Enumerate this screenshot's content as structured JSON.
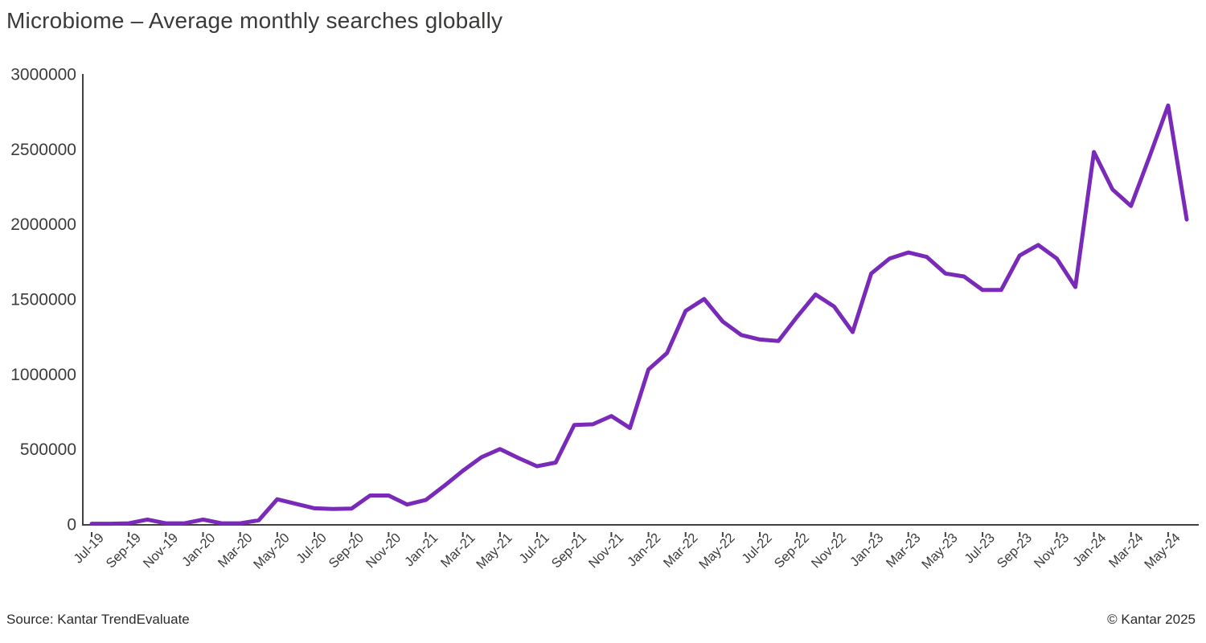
{
  "header": {
    "title": "Microbiome – Average monthly searches globally"
  },
  "footer": {
    "source": "Source: Kantar TrendEvaluate",
    "copyright": "© Kantar 2025"
  },
  "colors": {
    "line": "#7a2ab8",
    "axis": "#404040",
    "tick_text": "#3c3c3b",
    "background": "#ffffff"
  },
  "chart_data": {
    "type": "line",
    "title": "Microbiome – Average monthly searches globally",
    "xlabel": "",
    "ylabel": "",
    "ylim": [
      0,
      3000000
    ],
    "grid": false,
    "legend_position": "none",
    "series_name": "Average monthly searches",
    "x": [
      "Jul-19",
      "Aug-19",
      "Sep-19",
      "Oct-19",
      "Nov-19",
      "Dec-19",
      "Jan-20",
      "Feb-20",
      "Mar-20",
      "Apr-20",
      "May-20",
      "Jun-20",
      "Jul-20",
      "Aug-20",
      "Sep-20",
      "Oct-20",
      "Nov-20",
      "Dec-20",
      "Jan-21",
      "Feb-21",
      "Mar-21",
      "Apr-21",
      "May-21",
      "Jun-21",
      "Jul-21",
      "Aug-21",
      "Sep-21",
      "Oct-21",
      "Nov-21",
      "Dec-21",
      "Jan-22",
      "Feb-22",
      "Mar-22",
      "Apr-22",
      "May-22",
      "Jun-22",
      "Jul-22",
      "Aug-22",
      "Sep-22",
      "Oct-22",
      "Nov-22",
      "Dec-22",
      "Jan-23",
      "Feb-23",
      "Mar-23",
      "Apr-23",
      "May-23",
      "Jun-23",
      "Jul-23",
      "Aug-23",
      "Sep-23",
      "Oct-23",
      "Nov-23",
      "Dec-23",
      "Jan-24",
      "Feb-24",
      "Mar-24",
      "Apr-24",
      "May-24",
      "Jun-24"
    ],
    "values": [
      2000,
      2000,
      5000,
      30000,
      5000,
      5000,
      30000,
      5000,
      5000,
      25000,
      165000,
      135000,
      105000,
      100000,
      103000,
      190000,
      190000,
      130000,
      160000,
      255000,
      355000,
      445000,
      500000,
      440000,
      385000,
      410000,
      660000,
      665000,
      720000,
      640000,
      1030000,
      1140000,
      1420000,
      1500000,
      1350000,
      1260000,
      1230000,
      1220000,
      1380000,
      1530000,
      1450000,
      1280000,
      1670000,
      1770000,
      1810000,
      1780000,
      1670000,
      1650000,
      1560000,
      1560000,
      1790000,
      1860000,
      1770000,
      1580000,
      2480000,
      2230000,
      2120000,
      2450000,
      2790000,
      2030000
    ],
    "x_tick_labels": [
      "Jul-19",
      "Sep-19",
      "Nov-19",
      "Jan-20",
      "Mar-20",
      "May-20",
      "Jul-20",
      "Sep-20",
      "Nov-20",
      "Jan-21",
      "Mar-21",
      "May-21",
      "Jul-21",
      "Sep-21",
      "Nov-21",
      "Jan-22",
      "Mar-22",
      "May-22",
      "Jul-22",
      "Sep-22",
      "Nov-22",
      "Jan-23",
      "Mar-23",
      "May-23",
      "Jul-23",
      "Sep-23",
      "Nov-23",
      "Jan-24",
      "Mar-24",
      "May-24"
    ],
    "y_tick_labels": [
      "0",
      "500000",
      "1000000",
      "1500000",
      "2000000",
      "2500000",
      "3000000"
    ],
    "y_ticks": [
      0,
      500000,
      1000000,
      1500000,
      2000000,
      2500000,
      3000000
    ]
  }
}
